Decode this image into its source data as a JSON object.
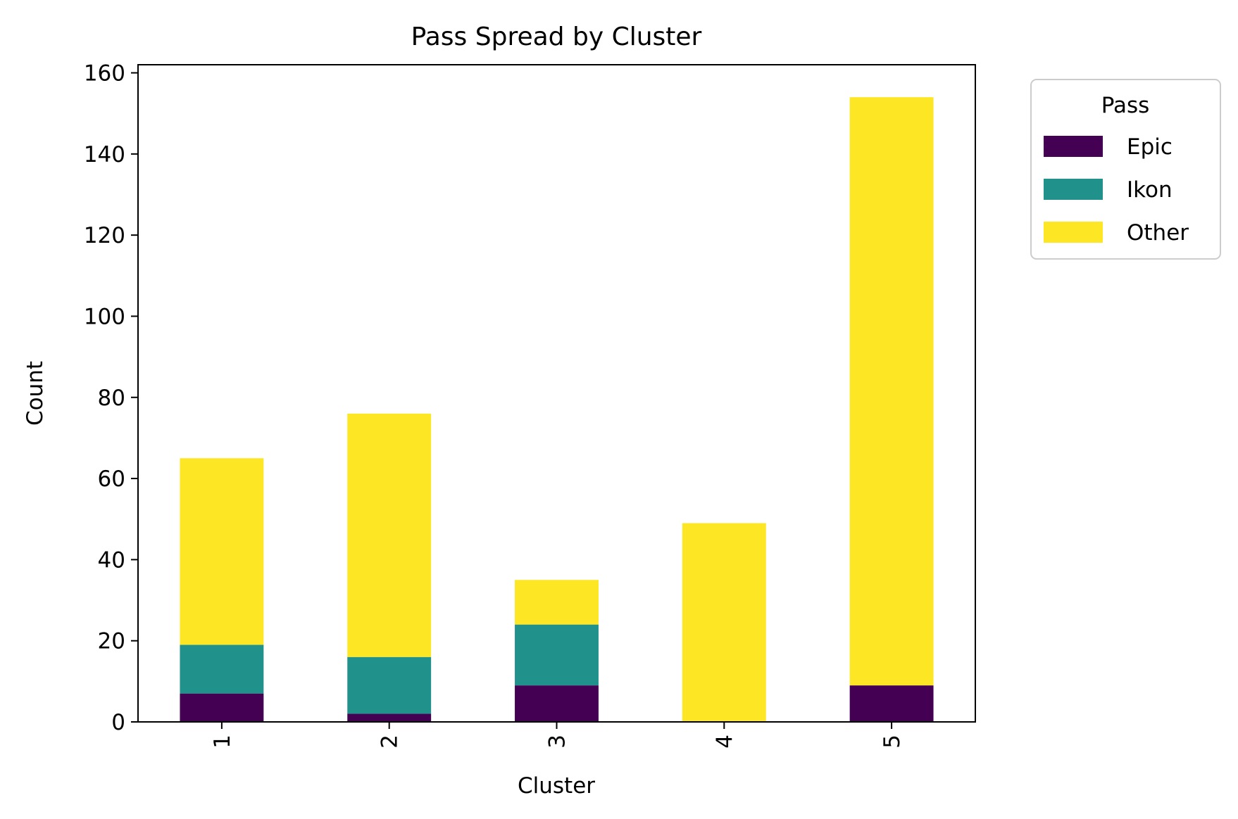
{
  "chart_data": {
    "type": "bar",
    "stacked": true,
    "title": "Pass Spread by Cluster",
    "xlabel": "Cluster",
    "ylabel": "Count",
    "categories": [
      "1",
      "2",
      "3",
      "4",
      "5"
    ],
    "ylim": [
      0,
      162
    ],
    "yticks": [
      0,
      20,
      40,
      60,
      80,
      100,
      120,
      140,
      160
    ],
    "grid": false,
    "legend": {
      "title": "Pass",
      "placement": "outside-top-right"
    },
    "series": [
      {
        "name": "Epic",
        "color": "#440154",
        "values": [
          7,
          2,
          9,
          0,
          9
        ]
      },
      {
        "name": "Ikon",
        "color": "#21918c",
        "values": [
          12,
          14,
          15,
          0,
          0
        ]
      },
      {
        "name": "Other",
        "color": "#fde725",
        "values": [
          46,
          60,
          11,
          49,
          145
        ]
      }
    ]
  }
}
